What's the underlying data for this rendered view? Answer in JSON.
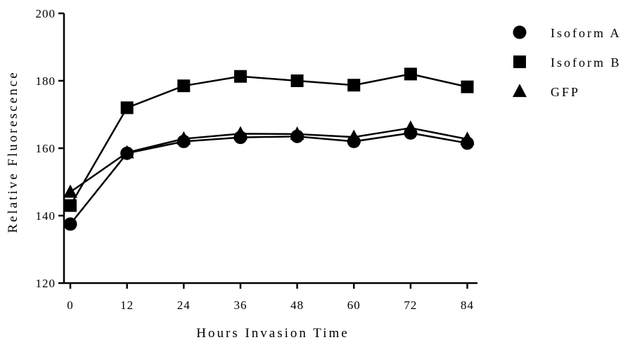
{
  "chart_data": {
    "type": "line",
    "title": "",
    "xlabel": "Hours Invasion Time",
    "ylabel": "Relative Fluorescence",
    "xlim": [
      0,
      86
    ],
    "ylim": [
      120,
      200
    ],
    "xticks": [
      0,
      12,
      24,
      36,
      48,
      60,
      72,
      84
    ],
    "yticks": [
      120,
      140,
      160,
      180,
      200
    ],
    "grid": false,
    "legend_position": "right",
    "series": [
      {
        "name": "Isoform A",
        "marker": "circle",
        "color": "#000000",
        "x": [
          0,
          12,
          24,
          36,
          48,
          60,
          72,
          84
        ],
        "y": [
          137.5,
          158.5,
          162.0,
          163.2,
          163.5,
          162.0,
          164.5,
          161.5
        ]
      },
      {
        "name": "Isoform B",
        "marker": "square",
        "color": "#000000",
        "x": [
          0,
          12,
          24,
          36,
          48,
          60,
          72,
          84
        ],
        "y": [
          143.0,
          172.0,
          178.5,
          181.3,
          180.0,
          178.7,
          182.0,
          178.2
        ]
      },
      {
        "name": "GFP",
        "marker": "triangle",
        "color": "#000000",
        "x": [
          0,
          12,
          24,
          36,
          48,
          60,
          72,
          84
        ],
        "y": [
          147.0,
          158.7,
          162.8,
          164.3,
          164.2,
          163.3,
          166.0,
          162.7
        ]
      }
    ]
  }
}
